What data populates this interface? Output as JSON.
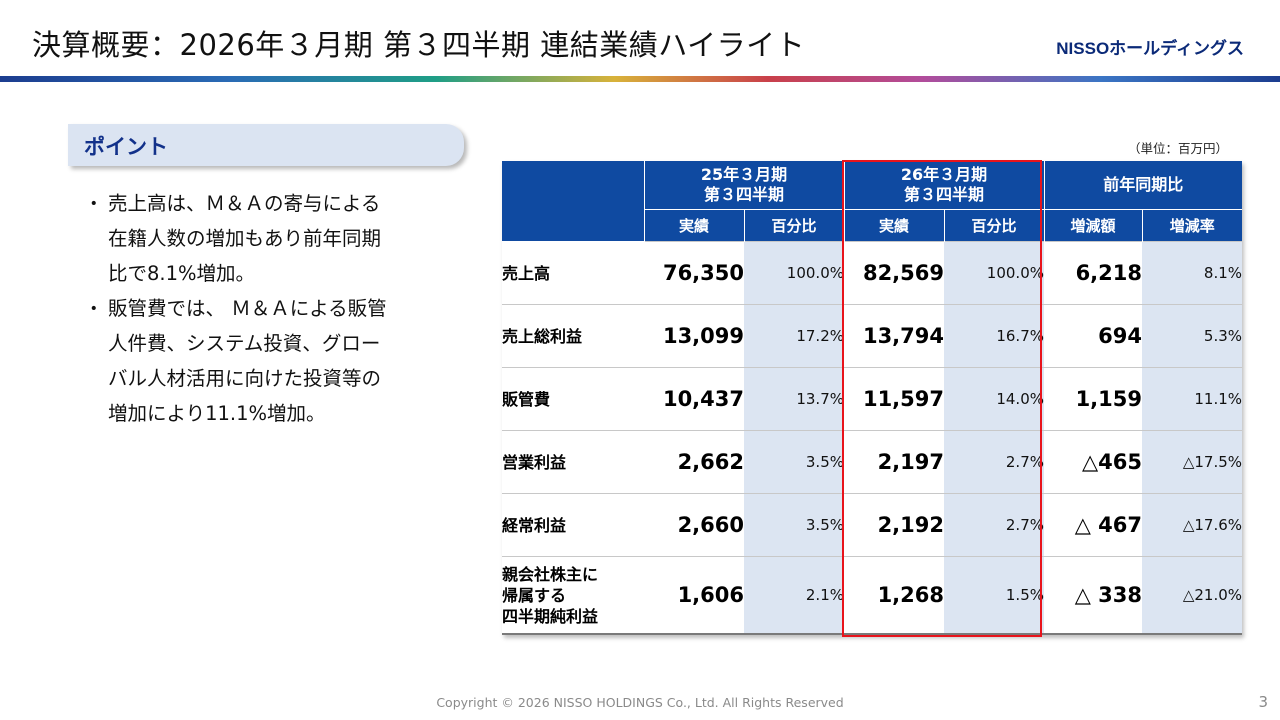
{
  "header": {
    "title": "決算概要：2026年３月期 第３四半期 連結業績ハイライト",
    "logo_mark": "NISSO",
    "logo_text": "NISSOホールディングス"
  },
  "point": {
    "heading": "ポイント",
    "bullets": [
      "売上高は、M&Aの寄与による在籍人数の増加もあり前年同期比で8.1%増加。",
      "販管費では、 M&Aによる販管人件費、システム投資、グローバル人材活用に向けた投資等の増加により11.1%増加。"
    ],
    "bullet_lines": [
      [
        "売上高は、Ｍ＆Ａの寄与による",
        "在籍人数の増加もあり前年同期",
        "比で8.1%増加。"
      ],
      [
        "販管費では、 Ｍ＆Ａによる販管",
        "人件費、システム投資、グロー",
        "バル人材活用に向けた投資等の",
        "増加により11.1%増加。"
      ]
    ],
    "dot": "・"
  },
  "table": {
    "unit": "（単位：百万円）",
    "groups": [
      {
        "line1": "25年３月期",
        "line2": "第３四半期"
      },
      {
        "line1": "26年３月期",
        "line2": "第３四半期"
      },
      {
        "line1": "前年同期比",
        "line2": ""
      }
    ],
    "subheaders": [
      "実績",
      "百分比",
      "実績",
      "百分比",
      "増減額",
      "増減率"
    ],
    "rows": [
      {
        "label": "売上高",
        "prev": "76,350",
        "prev_pct": "100.0%",
        "curr": "82,569",
        "curr_pct": "100.0%",
        "diff": "6,218",
        "rate": "8.1%"
      },
      {
        "label": "売上総利益",
        "prev": "13,099",
        "prev_pct": "17.2%",
        "curr": "13,794",
        "curr_pct": "16.7%",
        "diff": "694",
        "rate": "5.3%"
      },
      {
        "label": "販管費",
        "prev": "10,437",
        "prev_pct": "13.7%",
        "curr": "11,597",
        "curr_pct": "14.0%",
        "diff": "1,159",
        "rate": "11.1%"
      },
      {
        "label": "営業利益",
        "prev": "2,662",
        "prev_pct": "3.5%",
        "curr": "2,197",
        "curr_pct": "2.7%",
        "diff": "△465",
        "rate": "△17.5%"
      },
      {
        "label": "経常利益",
        "prev": "2,660",
        "prev_pct": "3.5%",
        "curr": "2,192",
        "curr_pct": "2.7%",
        "diff": "△ 467",
        "rate": "△17.6%"
      },
      {
        "label": "親会社株主に\n帰属する\n四半期純利益",
        "prev": "1,606",
        "prev_pct": "2.1%",
        "curr": "1,268",
        "curr_pct": "1.5%",
        "diff": "△ 338",
        "rate": "△21.0%"
      }
    ]
  },
  "footer": {
    "copyright": "Copyright © 2026 NISSO HOLDINGS Co., Ltd. All Rights Reserved",
    "page": "3"
  },
  "colors": {
    "header_blue": "#0f4aa1",
    "pct_shade": "#dce5f2",
    "highlight_border": "#e8141c",
    "point_tab": "#dbe4f2",
    "point_text": "#12318a"
  }
}
